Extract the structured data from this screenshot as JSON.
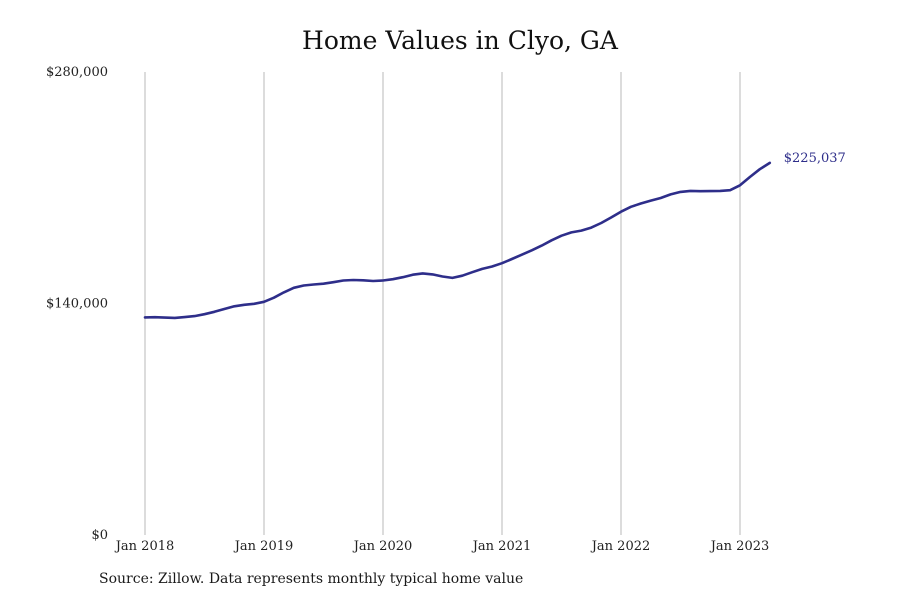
{
  "chart_data": {
    "type": "line",
    "title": "Home Values in Clyo, GA",
    "source_note": "Source: Zillow. Data represents monthly typical home value",
    "xlabel": "",
    "ylabel": "",
    "x_tick_labels": [
      "Jan 2018",
      "Jan 2019",
      "Jan 2020",
      "Jan 2021",
      "Jan 2022",
      "Jan 2023"
    ],
    "y_tick_labels": [
      "$280,000",
      "$140,000",
      "$0"
    ],
    "y_ticks": [
      280000,
      140000,
      0
    ],
    "ylim": [
      0,
      280000
    ],
    "x_range": [
      "2018-01",
      "2023-12"
    ],
    "grid": "vertical lines at each January",
    "line_color": "#2e2e8a",
    "end_label": "$225,037",
    "series": [
      {
        "values_by_month": [
          [
            "2018-01",
            131600
          ],
          [
            "2018-02",
            131700
          ],
          [
            "2018-03",
            131500
          ],
          [
            "2018-04",
            131300
          ],
          [
            "2018-05",
            131800
          ],
          [
            "2018-06",
            132400
          ],
          [
            "2018-07",
            133500
          ],
          [
            "2018-08",
            135000
          ],
          [
            "2018-09",
            136700
          ],
          [
            "2018-10",
            138300
          ],
          [
            "2018-11",
            139200
          ],
          [
            "2018-12",
            139800
          ],
          [
            "2019-01",
            141000
          ],
          [
            "2019-02",
            143500
          ],
          [
            "2019-03",
            146700
          ],
          [
            "2019-04",
            149500
          ],
          [
            "2019-05",
            150900
          ],
          [
            "2019-06",
            151500
          ],
          [
            "2019-07",
            152000
          ],
          [
            "2019-08",
            152900
          ],
          [
            "2019-09",
            153900
          ],
          [
            "2019-10",
            154200
          ],
          [
            "2019-11",
            154000
          ],
          [
            "2019-12",
            153600
          ],
          [
            "2020-01",
            153900
          ],
          [
            "2020-02",
            154700
          ],
          [
            "2020-03",
            155900
          ],
          [
            "2020-04",
            157400
          ],
          [
            "2020-05",
            158200
          ],
          [
            "2020-06",
            157600
          ],
          [
            "2020-07",
            156300
          ],
          [
            "2020-08",
            155500
          ],
          [
            "2020-09",
            156800
          ],
          [
            "2020-10",
            158900
          ],
          [
            "2020-11",
            160900
          ],
          [
            "2020-12",
            162400
          ],
          [
            "2021-01",
            164400
          ],
          [
            "2021-02",
            166900
          ],
          [
            "2021-03",
            169500
          ],
          [
            "2021-04",
            172200
          ],
          [
            "2021-05",
            175000
          ],
          [
            "2021-06",
            178200
          ],
          [
            "2021-07",
            181000
          ],
          [
            "2021-08",
            183000
          ],
          [
            "2021-09",
            184100
          ],
          [
            "2021-10",
            185900
          ],
          [
            "2021-11",
            188700
          ],
          [
            "2021-12",
            192000
          ],
          [
            "2022-01",
            195500
          ],
          [
            "2022-02",
            198500
          ],
          [
            "2022-03",
            200500
          ],
          [
            "2022-04",
            202200
          ],
          [
            "2022-05",
            203800
          ],
          [
            "2022-06",
            206000
          ],
          [
            "2022-07",
            207500
          ],
          [
            "2022-08",
            208100
          ],
          [
            "2022-09",
            207900
          ],
          [
            "2022-10",
            208000
          ],
          [
            "2022-11",
            208100
          ],
          [
            "2022-12",
            208500
          ],
          [
            "2023-01",
            211500
          ],
          [
            "2023-02",
            216500
          ],
          [
            "2023-03",
            221200
          ],
          [
            "2023-04",
            225037
          ]
        ]
      }
    ]
  }
}
